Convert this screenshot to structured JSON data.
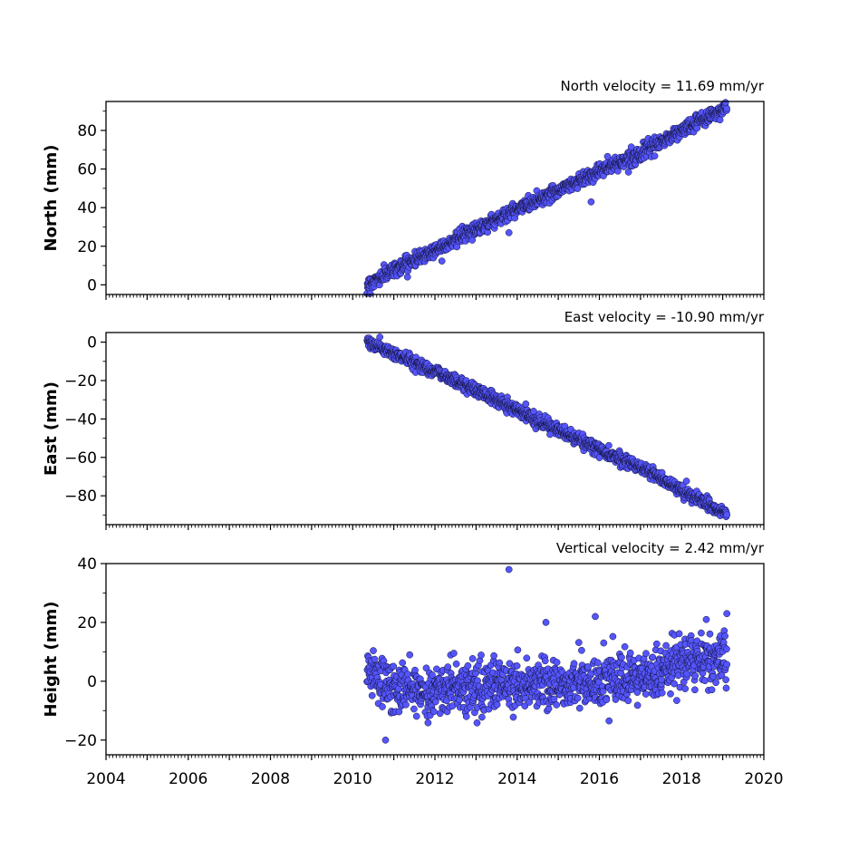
{
  "chart_data": [
    {
      "type": "scatter",
      "title": "North velocity = 11.69 mm/yr",
      "ylabel": "North (mm)",
      "xlim": [
        2004,
        2020
      ],
      "ylim": [
        -5,
        95
      ],
      "yticks": [
        0,
        20,
        40,
        60,
        80
      ],
      "xtick_labels_shown": false,
      "series": [
        {
          "x": [
            2010.35,
            2011.0,
            2012.0,
            2013.0,
            2014.0,
            2015.0,
            2016.0,
            2017.0,
            2018.0,
            2019.1
          ],
          "y": [
            0,
            8,
            18,
            29,
            39,
            49,
            59,
            68,
            80,
            92
          ],
          "noise": 1.8,
          "outliers": [
            [
              2013.8,
              27
            ],
            [
              2015.8,
              43
            ]
          ]
        }
      ]
    },
    {
      "type": "scatter",
      "title": "East velocity = -10.90 mm/yr",
      "ylabel": "East (mm)",
      "xlim": [
        2004,
        2020
      ],
      "ylim": [
        -95,
        5
      ],
      "yticks": [
        0,
        -20,
        -40,
        -60,
        -80
      ],
      "ytick_labels": [
        "0",
        "−20",
        "−40",
        "−60",
        "−80"
      ],
      "xtick_labels_shown": false,
      "series": [
        {
          "x": [
            2010.35,
            2011.0,
            2012.0,
            2013.0,
            2014.0,
            2015.0,
            2016.0,
            2017.0,
            2018.0,
            2019.1
          ],
          "y": [
            0,
            -6,
            -15,
            -25,
            -35,
            -46,
            -56,
            -65,
            -77,
            -90
          ],
          "noise": 1.6,
          "outliers": [
            [
              2014.4,
              -36
            ],
            [
              2014.8,
              -48
            ]
          ]
        }
      ]
    },
    {
      "type": "scatter",
      "title": "Vertical velocity = 2.42 mm/yr",
      "ylabel": "Height (mm)",
      "xlim": [
        2004,
        2020
      ],
      "ylim": [
        -25,
        40
      ],
      "yticks": [
        -20,
        0,
        20,
        40
      ],
      "ytick_labels": [
        "−20",
        "0",
        "20",
        "40"
      ],
      "xticks": [
        2004,
        2006,
        2008,
        2010,
        2012,
        2014,
        2016,
        2018,
        2020
      ],
      "xtick_labels": [
        "2004",
        "2006",
        "2008",
        "2010",
        "2012",
        "2014",
        "2016",
        "2018",
        "2020"
      ],
      "xtick_labels_shown": true,
      "series": [
        {
          "x": [
            2010.35,
            2011.0,
            2012.0,
            2013.0,
            2014.0,
            2015.0,
            2016.0,
            2017.0,
            2018.0,
            2019.1
          ],
          "y": [
            4,
            -3,
            -3,
            -2,
            -1,
            -1,
            0,
            0,
            7,
            8
          ],
          "noise": 4.2,
          "outliers": [
            [
              2013.8,
              38
            ],
            [
              2010.8,
              -20
            ],
            [
              2015.9,
              22
            ],
            [
              2014.7,
              20
            ],
            [
              2019.1,
              23
            ],
            [
              2018.6,
              21
            ]
          ]
        }
      ]
    }
  ]
}
